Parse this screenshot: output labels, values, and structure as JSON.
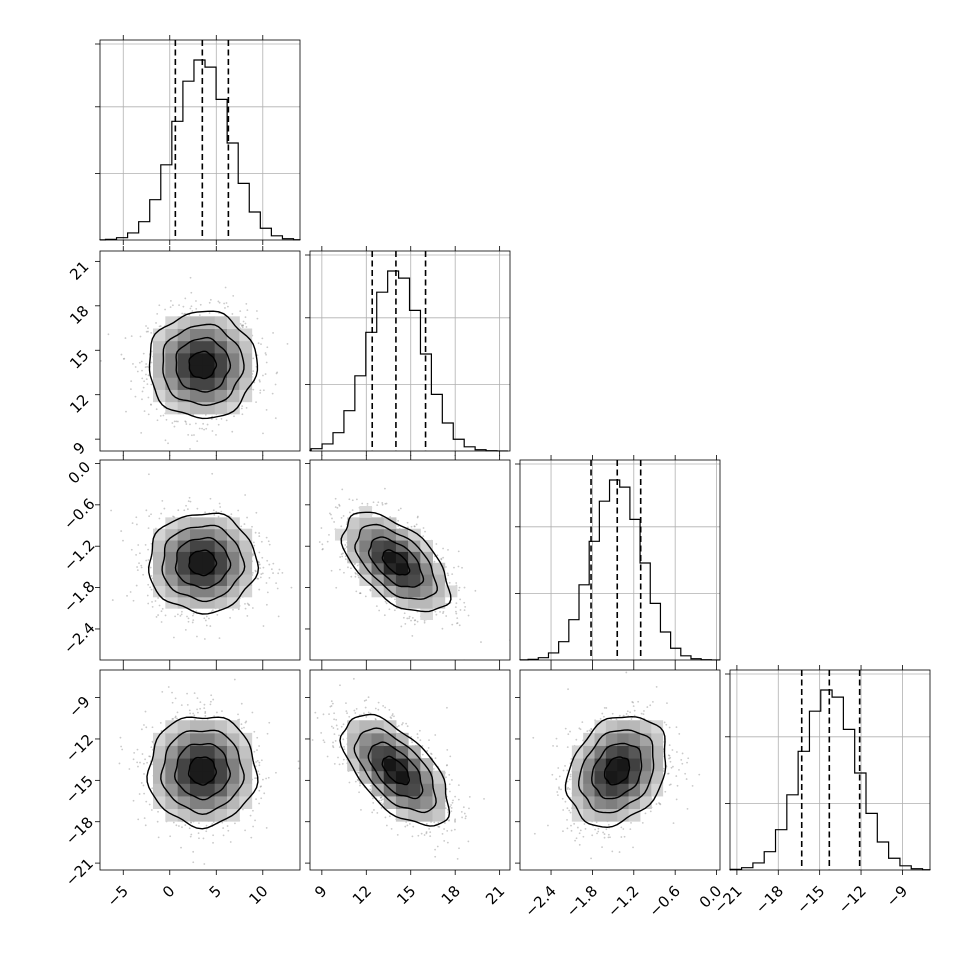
{
  "chart_data": {
    "type": "corner",
    "title": "",
    "parameters": [
      {
        "index": 0,
        "range": [
          -7.5,
          14
        ],
        "ticks": [
          -5,
          0,
          5,
          10
        ],
        "tick_labels": [
          "−5",
          "0",
          "5",
          "10"
        ],
        "median": 3.5,
        "quantiles": [
          0.6,
          3.5,
          6.3
        ],
        "mean": 3.5,
        "sd": 2.9
      },
      {
        "index": 1,
        "range": [
          8.2,
          21.7
        ],
        "ticks": [
          9,
          12,
          15,
          18,
          21
        ],
        "tick_labels": [
          "9",
          "12",
          "15",
          "18",
          "21"
        ],
        "median": 14.0,
        "quantiles": [
          12.4,
          14.0,
          16.0
        ],
        "mean": 14.0,
        "sd": 1.8
      },
      {
        "index": 2,
        "range": [
          -2.85,
          0.05
        ],
        "ticks": [
          -2.4,
          -1.8,
          -1.2,
          -0.6,
          0.0
        ],
        "tick_labels": [
          "−2.4",
          "−1.8",
          "−1.2",
          "−0.6",
          "0.0"
        ],
        "median": -1.44,
        "quantiles": [
          -1.82,
          -1.44,
          -1.1
        ],
        "mean": -1.44,
        "sd": 0.36
      },
      {
        "index": 3,
        "range": [
          -21.5,
          -7.0
        ],
        "ticks": [
          -21,
          -18,
          -15,
          -12,
          -9
        ],
        "tick_labels": [
          "−21",
          "−18",
          "−15",
          "−12",
          "−9"
        ],
        "median": -14.3,
        "quantiles": [
          -16.3,
          -14.3,
          -12.1
        ],
        "mean": -14.3,
        "sd": 2.0
      }
    ],
    "correlations": {
      "1-0": 0.0,
      "2-0": 0.0,
      "2-1": -0.55,
      "3-0": 0.0,
      "3-1": -0.6,
      "3-2": 0.25
    },
    "grid": true,
    "contour_levels": [
      "0.5-sigma",
      "1-sigma",
      "1.5-sigma",
      "2-sigma"
    ],
    "colors": {
      "marks": "#000000",
      "points": "#8a8a8a",
      "grid": "#b0b0b0"
    }
  }
}
